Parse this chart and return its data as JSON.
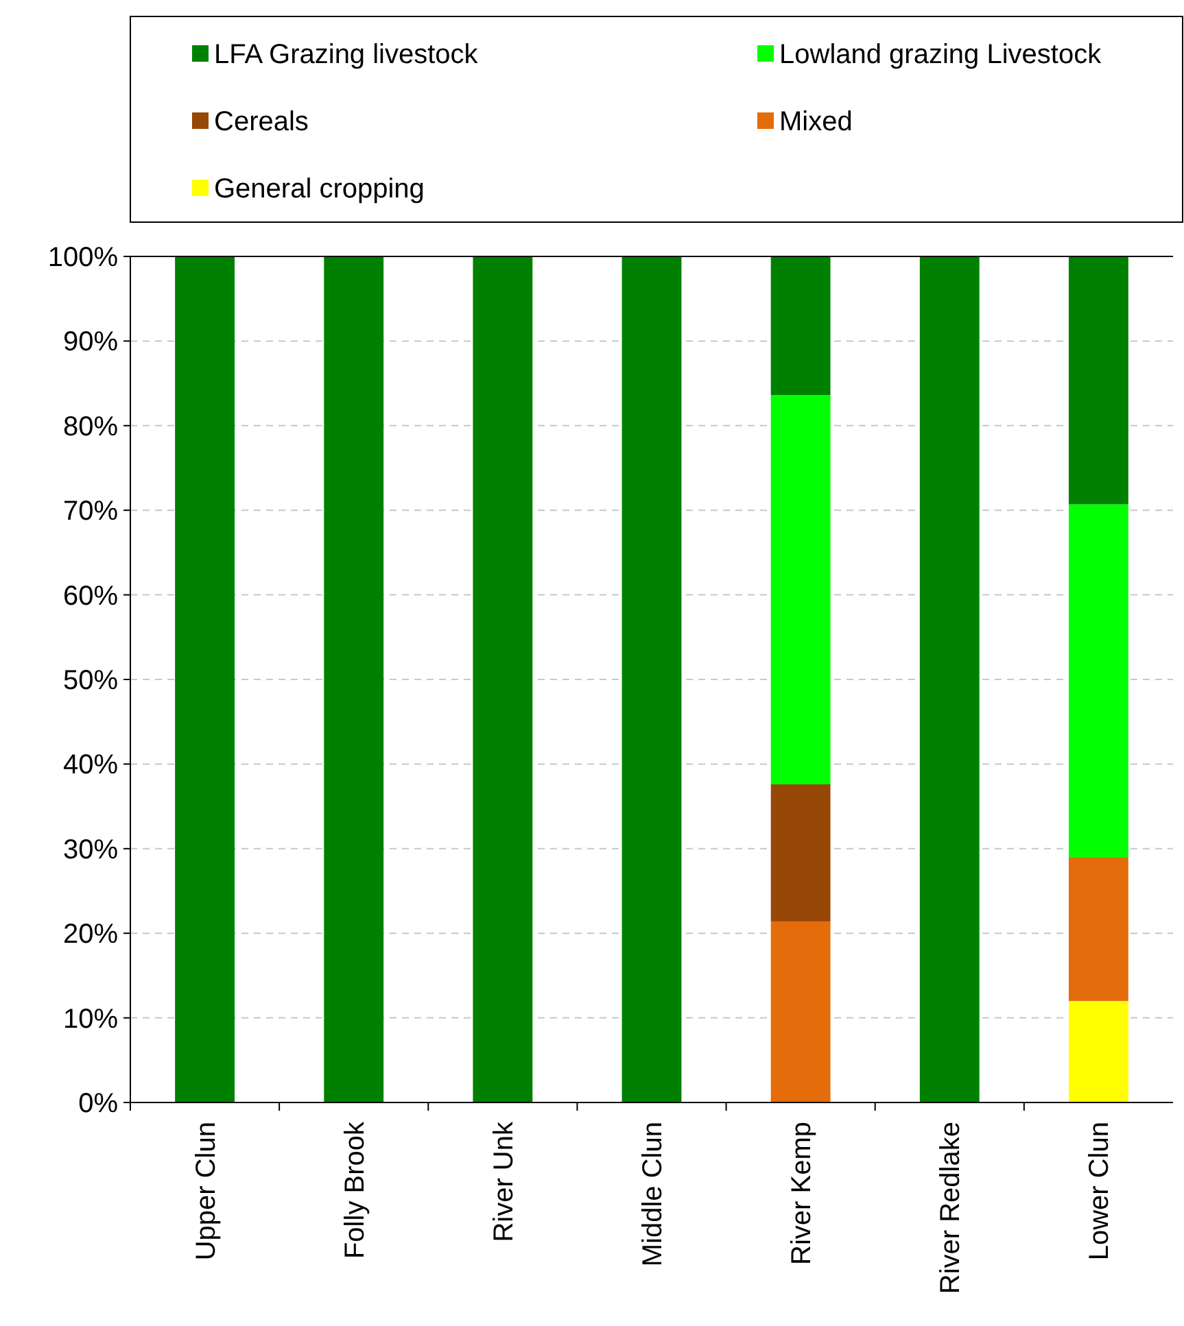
{
  "chart_data": {
    "type": "bar",
    "stacked": true,
    "categories": [
      "Upper Clun",
      "Folly Brook",
      "River Unk",
      "Middle Clun",
      "River Kemp",
      "River Redlake",
      "Lower Clun"
    ],
    "series": [
      {
        "name": "General cropping",
        "color": "#ffff00",
        "values": [
          0,
          0,
          0,
          0,
          0,
          0,
          12
        ]
      },
      {
        "name": "Mixed",
        "color": "#e46c0a",
        "values": [
          0,
          0,
          0,
          0,
          21.4,
          0,
          17
        ]
      },
      {
        "name": "Cereals",
        "color": "#974706",
        "values": [
          0,
          0,
          0,
          0,
          16.2,
          0,
          0
        ]
      },
      {
        "name": "Lowland grazing Livestock",
        "color": "#00ff00",
        "values": [
          0,
          0,
          0,
          0,
          46,
          0,
          41.7
        ]
      },
      {
        "name": "LFA Grazing livestock",
        "color": "#008000",
        "values": [
          100,
          100,
          100,
          100,
          16.4,
          100,
          29.3
        ]
      }
    ],
    "ylim": [
      0,
      100
    ],
    "yticks": [
      {
        "value": 0,
        "label": "0%"
      },
      {
        "value": 10,
        "label": "10%"
      },
      {
        "value": 20,
        "label": "20%"
      },
      {
        "value": 30,
        "label": "30%"
      },
      {
        "value": 40,
        "label": "40%"
      },
      {
        "value": 50,
        "label": "50%"
      },
      {
        "value": 60,
        "label": "60%"
      },
      {
        "value": 70,
        "label": "70%"
      },
      {
        "value": 80,
        "label": "80%"
      },
      {
        "value": 90,
        "label": "90%"
      },
      {
        "value": 100,
        "label": "100%"
      }
    ],
    "grid": "y",
    "legend": "top"
  }
}
